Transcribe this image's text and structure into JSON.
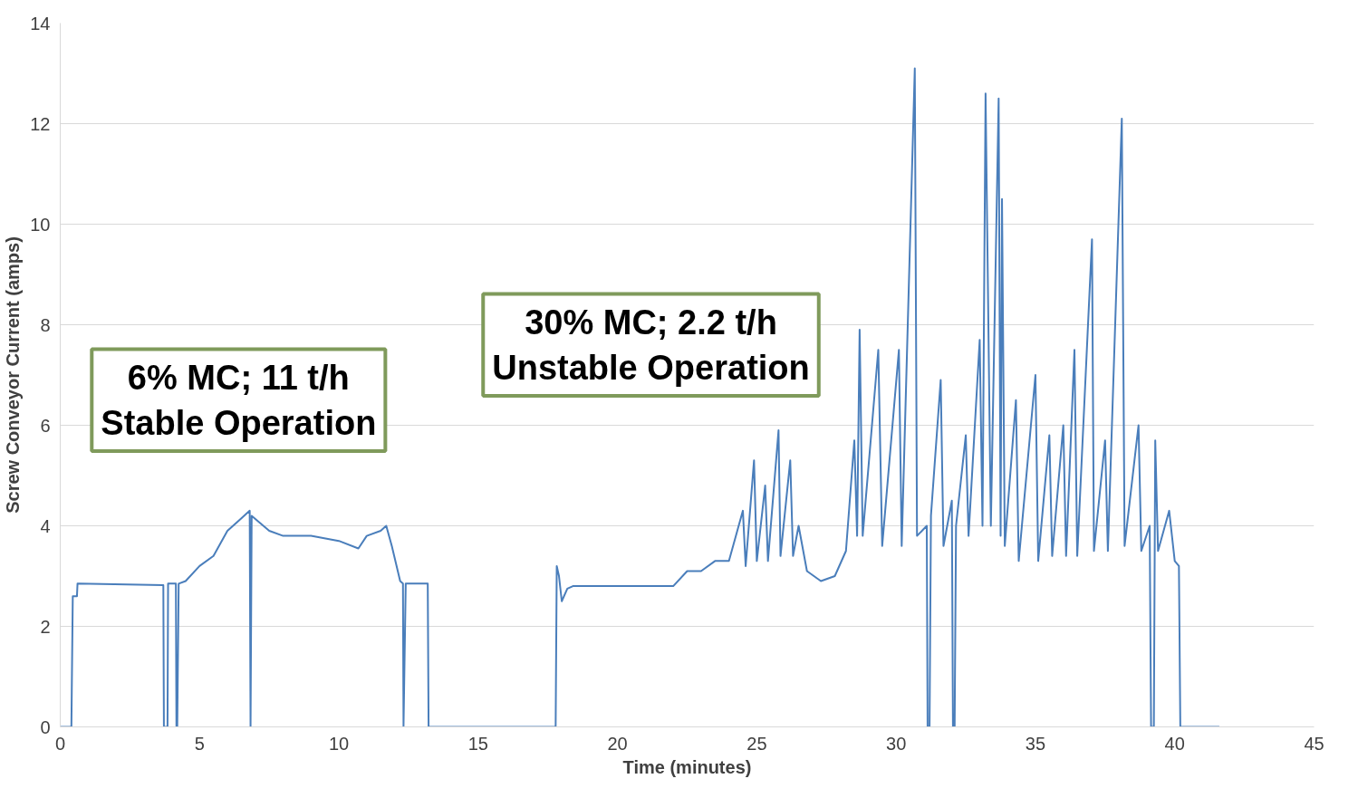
{
  "chart_data": {
    "type": "line",
    "xlabel": "Time (minutes)",
    "ylabel": "Screw Conveyor Current (amps)",
    "xlim": [
      0,
      45
    ],
    "ylim": [
      0,
      14
    ],
    "xticks": [
      0,
      5,
      10,
      15,
      20,
      25,
      30,
      35,
      40,
      45
    ],
    "yticks": [
      0,
      2,
      4,
      6,
      8,
      10,
      12,
      14
    ],
    "grid": "y",
    "annotations": [
      "6% MC; 11 t/h\nStable Operation",
      "30% MC; 2.2 t/h\nUnstable Operation"
    ],
    "series": [
      {
        "color": "#4a7ebb",
        "x": [
          0,
          0.4,
          0.45,
          0.6,
          0.62,
          3.7,
          3.72,
          3.85,
          3.87,
          4.15,
          4.17,
          4.2,
          4.25,
          4.5,
          5,
          5.5,
          6,
          6.5,
          6.8,
          6.83,
          6.87,
          7.5,
          8,
          9,
          10,
          10.7,
          11,
          11.5,
          11.7,
          11.9,
          12.2,
          12.3,
          12.32,
          12.4,
          13.19,
          13.22,
          17.78,
          17.82,
          17.9,
          18.0,
          18.2,
          18.4,
          22,
          22.5,
          23,
          23.5,
          24,
          24.5,
          24.6,
          24.9,
          25.0,
          25.3,
          25.4,
          25.78,
          25.85,
          26.2,
          26.3,
          26.5,
          26.8,
          27.3,
          27.8,
          28.2,
          28.5,
          28.6,
          28.69,
          28.8,
          29.36,
          29.5,
          30.1,
          30.2,
          30.67,
          30.75,
          31.1,
          31.13,
          31.2,
          31.25,
          31.6,
          31.7,
          32.0,
          32.04,
          32.1,
          32.15,
          32.5,
          32.6,
          33.0,
          33.1,
          33.21,
          33.4,
          33.68,
          33.75,
          33.8,
          33.9,
          34.3,
          34.4,
          35.0,
          35.1,
          35.5,
          35.6,
          36.0,
          36.1,
          36.4,
          36.5,
          37.03,
          37.1,
          37.5,
          37.6,
          38.1,
          38.2,
          38.7,
          38.8,
          39.1,
          39.15,
          39.25,
          39.3,
          39.4,
          39.8,
          40.0,
          40.15,
          40.2,
          41.6
        ],
        "values": [
          0,
          0,
          2.6,
          2.6,
          2.85,
          2.82,
          0,
          0,
          2.85,
          2.85,
          0,
          0,
          2.85,
          2.9,
          3.2,
          3.4,
          3.9,
          4.15,
          4.3,
          0,
          4.2,
          3.9,
          3.8,
          3.8,
          3.7,
          3.55,
          3.8,
          3.9,
          4.0,
          3.6,
          2.9,
          2.85,
          0,
          2.85,
          2.85,
          0,
          0,
          3.2,
          3.0,
          2.5,
          2.75,
          2.8,
          2.8,
          3.1,
          3.1,
          3.3,
          3.3,
          4.3,
          3.2,
          5.3,
          3.3,
          4.8,
          3.3,
          5.9,
          3.4,
          5.3,
          3.4,
          4.0,
          3.1,
          2.9,
          3.0,
          3.5,
          5.7,
          3.8,
          7.9,
          3.8,
          7.5,
          3.6,
          7.5,
          3.6,
          13.1,
          3.8,
          4.0,
          0,
          0,
          4.2,
          6.9,
          3.6,
          4.5,
          0,
          0,
          4.0,
          5.8,
          3.8,
          7.7,
          4.0,
          12.6,
          4.0,
          12.5,
          3.8,
          10.5,
          3.6,
          6.5,
          3.3,
          7.0,
          3.3,
          5.8,
          3.4,
          6.0,
          3.4,
          7.5,
          3.4,
          9.7,
          3.5,
          5.7,
          3.5,
          12.1,
          3.6,
          6.0,
          3.5,
          4.0,
          0,
          0,
          5.7,
          3.5,
          4.3,
          3.3,
          3.2,
          0,
          0
        ]
      }
    ]
  }
}
